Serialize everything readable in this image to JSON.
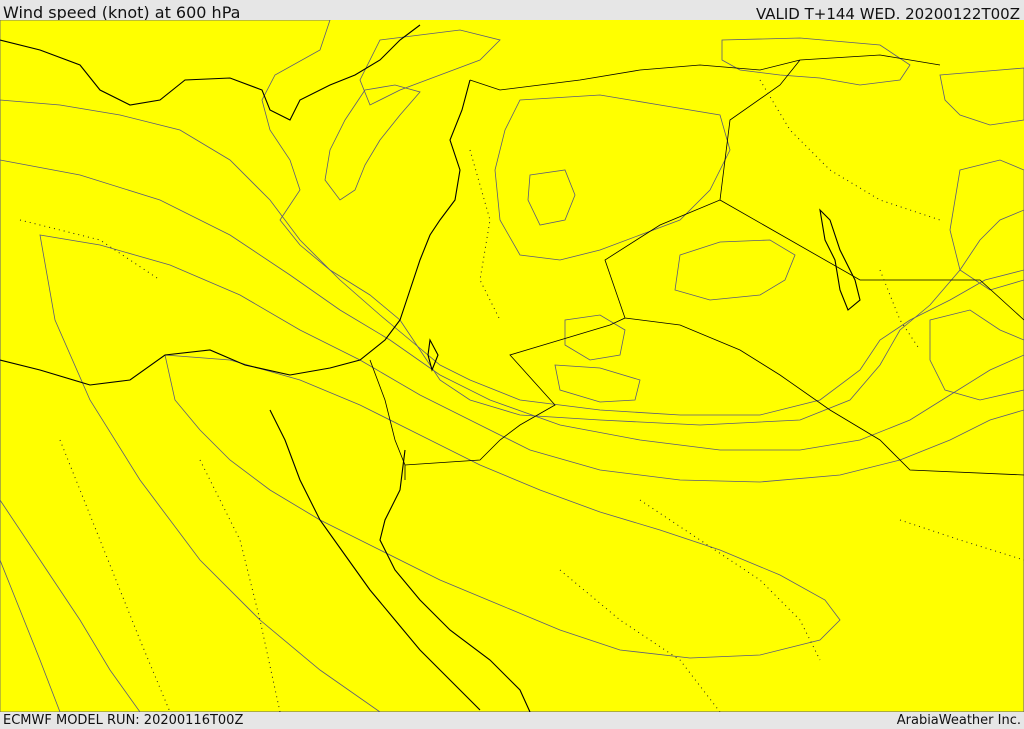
{
  "header": {
    "title": "Wind speed (knot) at 600 hPa",
    "valid": "VALID T+144 WED. 20200122T00Z"
  },
  "footer": {
    "model_run": "ECMWF MODEL RUN: 20200116T00Z",
    "credit": "ArabiaWeather Inc."
  },
  "map": {
    "colors": {
      "white": "#ffffff",
      "light": "#ffdea0",
      "yellow": "#ffff00",
      "gold": "#ffd800",
      "amber": "#ffb400",
      "orange": "#ff9900",
      "dark_orange": "#ff7f00",
      "red_orange": "#ff5f00"
    }
  }
}
